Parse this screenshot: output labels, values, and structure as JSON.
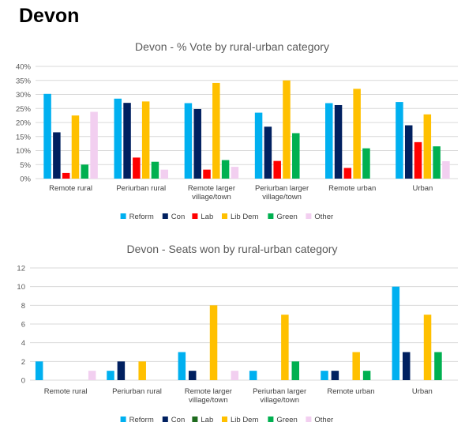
{
  "page_title": "Devon",
  "chart_data": [
    {
      "type": "bar",
      "title": "Devon - % Vote by rural-urban category",
      "categories": [
        [
          "Remote rural"
        ],
        [
          "Periurban rural"
        ],
        [
          "Remote larger",
          "village/town"
        ],
        [
          "Periurban larger",
          "village/town"
        ],
        [
          "Remote urban"
        ],
        [
          "Urban"
        ]
      ],
      "ylim": [
        0,
        40
      ],
      "yticks": [
        "0%",
        "5%",
        "10%",
        "15%",
        "20%",
        "25%",
        "30%",
        "35%",
        "40%"
      ],
      "ytick_values": [
        0,
        5,
        10,
        15,
        20,
        25,
        30,
        35,
        40
      ],
      "unit": "%",
      "grid": true,
      "legend_position": "bottom",
      "series": [
        {
          "name": "Reform",
          "color": "#00b0f0",
          "values": [
            30.2,
            28.5,
            26.9,
            23.5,
            26.9,
            27.3
          ]
        },
        {
          "name": "Con",
          "color": "#002060",
          "values": [
            16.5,
            27.0,
            24.8,
            18.5,
            26.2,
            19.0
          ]
        },
        {
          "name": "Lab",
          "color": "#ff0000",
          "values": [
            2.0,
            7.5,
            3.2,
            6.3,
            3.8,
            13.0
          ]
        },
        {
          "name": "Lib Dem",
          "color": "#ffc000",
          "values": [
            22.5,
            27.5,
            34.1,
            35.0,
            32.0,
            22.9
          ]
        },
        {
          "name": "Green",
          "color": "#00b050",
          "values": [
            5.0,
            6.0,
            6.6,
            16.2,
            10.8,
            11.5
          ]
        },
        {
          "name": "Other",
          "color": "#f2cff0",
          "values": [
            23.8,
            3.2,
            4.2,
            0,
            0,
            6.2
          ]
        }
      ]
    },
    {
      "type": "bar",
      "title": "Devon - Seats won by rural-urban category",
      "categories": [
        [
          "Remote rural"
        ],
        [
          "Periurban rural"
        ],
        [
          "Remote larger",
          "village/town"
        ],
        [
          "Periurban larger",
          "village/town"
        ],
        [
          "Remote urban"
        ],
        [
          "Urban"
        ]
      ],
      "ylim": [
        0,
        12
      ],
      "yticks": [
        "0",
        "2",
        "4",
        "6",
        "8",
        "10",
        "12"
      ],
      "ytick_values": [
        0,
        2,
        4,
        6,
        8,
        10,
        12
      ],
      "unit": "",
      "grid": true,
      "legend_position": "bottom",
      "series": [
        {
          "name": "Reform",
          "color": "#00b0f0",
          "values": [
            2,
            1,
            3,
            1,
            1,
            10
          ]
        },
        {
          "name": "Con",
          "color": "#002060",
          "values": [
            0,
            2,
            1,
            0,
            1,
            3
          ]
        },
        {
          "name": "Lab",
          "color": "#1e6b1e",
          "values": [
            0,
            0,
            0,
            0,
            0,
            0
          ]
        },
        {
          "name": "Lib Dem",
          "color": "#ffc000",
          "values": [
            0,
            2,
            8,
            7,
            3,
            7
          ]
        },
        {
          "name": "Green",
          "color": "#00b050",
          "values": [
            0,
            0,
            0,
            2,
            1,
            3
          ]
        },
        {
          "name": "Other",
          "color": "#f2cff0",
          "values": [
            1,
            0,
            1,
            0,
            0,
            0
          ]
        }
      ]
    }
  ]
}
